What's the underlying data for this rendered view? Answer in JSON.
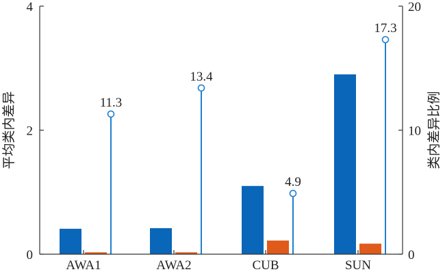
{
  "chart_data": {
    "type": "bar",
    "categories": [
      "AWA1",
      "AWA2",
      "CUB",
      "SUN"
    ],
    "series": [
      {
        "axis": "left",
        "kind": "bar",
        "color": "#0a66b8",
        "values": [
          0.41,
          0.42,
          1.1,
          2.9
        ]
      },
      {
        "axis": "left",
        "kind": "bar",
        "color": "#e05a1b",
        "values": [
          0.03,
          0.03,
          0.22,
          0.17
        ]
      },
      {
        "axis": "right",
        "kind": "stem",
        "color": "#1f7fcf",
        "values": [
          11.3,
          13.4,
          4.9,
          17.3
        ],
        "labels": [
          "11.3",
          "13.4",
          "4.9",
          "17.3"
        ]
      }
    ],
    "ylabel": "平均类内差异",
    "y2label": "类内差异比例",
    "ylim": [
      0,
      4
    ],
    "y2lim": [
      0,
      20
    ],
    "yticks": [
      "0",
      "2",
      "4"
    ],
    "y2ticks": [
      "0",
      "10",
      "20"
    ],
    "grid": false,
    "legend": "none"
  }
}
